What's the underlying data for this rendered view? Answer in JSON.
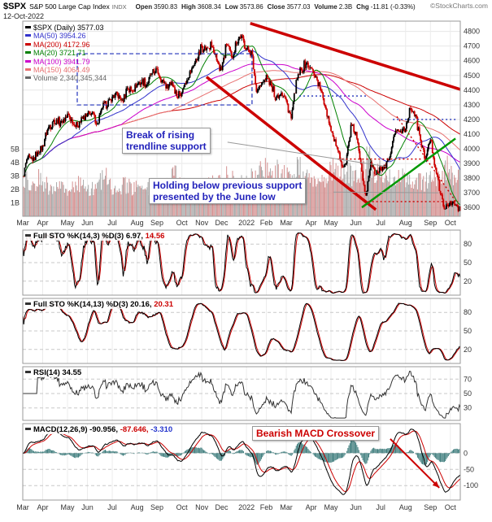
{
  "header": {
    "symbol": "$SPX",
    "name": "S&P 500 Large Cap Index",
    "exchange": "INDX",
    "date": "12-Oct-2022",
    "copyright": "©StockCharts.com",
    "quote": [
      {
        "label": "Open",
        "value": "3590.83"
      },
      {
        "label": "High",
        "value": "3608.34"
      },
      {
        "label": "Low",
        "value": "3573.86"
      },
      {
        "label": "Close",
        "value": "3577.03"
      },
      {
        "label": "Volume",
        "value": "2.3B"
      },
      {
        "label": "Chg",
        "value": "-11.81 (-0.33%)"
      }
    ]
  },
  "legend": [
    {
      "label": "$SPX (Daily)",
      "value": "3577.03",
      "color": "#000000"
    },
    {
      "label": "MA(50)",
      "value": "3954.26",
      "color": "#3333cc"
    },
    {
      "label": "MA(200)",
      "value": "4172.96",
      "color": "#cc0000"
    },
    {
      "label": "MA(20)",
      "value": "3721.71",
      "color": "#008000"
    },
    {
      "label": "MA(100)",
      "value": "3941.79",
      "color": "#cc00cc"
    },
    {
      "label": "MA(150)",
      "value": "4064.49",
      "color": "#e87070"
    },
    {
      "label": "Volume",
      "value": "2,340,345,344",
      "color": "#666666"
    }
  ],
  "annotations": {
    "break_box": {
      "line1": "Break of rising",
      "line2": "trendline support"
    },
    "hold_box": {
      "line1": "Holding below previous support",
      "line2": "presented by the June low"
    },
    "macd_box": {
      "text": "Bearish MACD Crossover"
    }
  },
  "colors": {
    "candle_up": "#000000",
    "candle_down": "#cc0000",
    "macd_hist": "#3d7c7c",
    "annotation_blue": "#2222bb",
    "annotation_red": "#cc0000",
    "grid": "#e7e7e7"
  },
  "chart_data": {
    "type": "candlestick",
    "title": "$SPX S&P 500 Large Cap Index, Daily, with MA(20,50,100,150,200), Volume, Full STO, RSI and MACD panels",
    "x_axis_months": [
      [
        "Mar",
        0
      ],
      [
        "Apr",
        4
      ],
      [
        "May",
        9
      ],
      [
        "Jun",
        13
      ],
      [
        "Jul",
        18
      ],
      [
        "Aug",
        23
      ],
      [
        "Sep",
        27
      ],
      [
        "Oct",
        32
      ],
      [
        "Nov",
        36
      ],
      [
        "Dec",
        40
      ],
      [
        "2022",
        45
      ],
      [
        "Feb",
        49
      ],
      [
        "Mar",
        53
      ],
      [
        "Apr",
        58
      ],
      [
        "May",
        62
      ],
      [
        "Jun",
        67
      ],
      [
        "Jul",
        72
      ],
      [
        "Aug",
        77
      ],
      [
        "Sep",
        82
      ],
      [
        "Oct",
        86
      ]
    ],
    "price_axis": {
      "min": 3540,
      "max": 4870,
      "ticks": [
        3600,
        3700,
        3800,
        3900,
        4000,
        4100,
        4200,
        4300,
        4400,
        4500,
        4600,
        4700,
        4800
      ]
    },
    "volume_axis": {
      "ticks_B": [
        1,
        2,
        3,
        4,
        5
      ]
    },
    "last_close": 3577.03,
    "weekly_close": [
      3811,
      3943,
      3913,
      3975,
      4019,
      4129,
      4185,
      4180,
      4181,
      4233,
      4174,
      4156,
      4204,
      4230,
      4247,
      4166,
      4281,
      4297,
      4352,
      4370,
      4327,
      4412,
      4395,
      4437,
      4468,
      4442,
      4510,
      4535,
      4459,
      4433,
      4455,
      4357,
      4392,
      4471,
      4545,
      4605,
      4698,
      4683,
      4698,
      4595,
      4538,
      4712,
      4621,
      4726,
      4766,
      4677,
      4663,
      4398,
      4432,
      4501,
      4419,
      4349,
      4385,
      4329,
      4204,
      4463,
      4543,
      4577,
      4546,
      4488,
      4392,
      4271,
      4123,
      4024,
      3901,
      3901,
      4158,
      4109,
      3901,
      3675,
      3912,
      3825,
      3863,
      3863,
      3962,
      4130,
      4118,
      4145,
      4280,
      4228,
      4058,
      3924,
      4067,
      3873,
      3693,
      3586,
      3640,
      3612,
      3577
    ],
    "weekly_volume_B": [
      2.8,
      2.6,
      2.5,
      2.9,
      2.3,
      2.2,
      2.1,
      2.2,
      2.0,
      2.1,
      2.3,
      2.5,
      2.2,
      2.0,
      2.1,
      2.6,
      3.6,
      2.2,
      2.1,
      2.0,
      2.3,
      2.2,
      2.1,
      2.0,
      1.9,
      2.0,
      2.1,
      2.2,
      2.0,
      2.3,
      3.4,
      2.4,
      2.4,
      2.2,
      2.1,
      2.3,
      2.2,
      2.3,
      2.4,
      2.8,
      3.0,
      3.4,
      2.7,
      2.2,
      2.4,
      2.6,
      2.8,
      3.3,
      3.6,
      3.2,
      3.0,
      3.3,
      3.1,
      3.4,
      3.3,
      3.5,
      3.0,
      2.8,
      2.7,
      2.6,
      2.8,
      3.2,
      3.4,
      3.3,
      3.6,
      3.2,
      3.0,
      3.1,
      3.4,
      4.6,
      3.3,
      3.4,
      3.0,
      2.8,
      2.7,
      2.9,
      2.8,
      2.9,
      2.7,
      2.6,
      2.5,
      2.7,
      2.8,
      2.9,
      3.1,
      3.6,
      3.0,
      2.8,
      2.3
    ],
    "indicators": {
      "sto_fast": {
        "label": "Full STO %K(14,3) %D(3)",
        "k": "6.97",
        "d": "14.56",
        "grid": [
          80,
          50,
          20
        ]
      },
      "sto_slow": {
        "label": "Full STO %K(14,13) %D(3)",
        "k": "20.16",
        "d": "20.31",
        "grid": [
          80,
          50,
          20
        ]
      },
      "rsi": {
        "label": "RSI(14)",
        "value": "34.55",
        "grid": [
          70,
          50,
          30
        ]
      },
      "macd": {
        "label": "MACD(12,26,9)",
        "macd": "-90.956",
        "signal": "-87.646",
        "hist": "-3.310",
        "grid": [
          0,
          -50,
          -100
        ]
      }
    },
    "overlays": {
      "lines": [
        {
          "x1": 0.52,
          "p1": 4855,
          "x2": 1.0,
          "p2": 4405,
          "color": "#cc0000",
          "w": 3.5
        },
        {
          "x1": 0.42,
          "p1": 4490,
          "x2": 0.807,
          "p2": 3585,
          "color": "#cc0000",
          "w": 3.5
        },
        {
          "x1": 0.775,
          "p1": 3600,
          "x2": 0.989,
          "p2": 4070,
          "color": "#009900",
          "w": 2.5
        },
        {
          "x1": 0.632,
          "p1": 4360,
          "x2": 0.788,
          "p2": 4360,
          "color": "#2233bb",
          "w": 1.4,
          "dash": "2 3"
        },
        {
          "x1": 0.846,
          "p1": 4200,
          "x2": 0.994,
          "p2": 4200,
          "color": "#2233bb",
          "w": 1.4,
          "dash": "2 3"
        },
        {
          "x1": 0.72,
          "p1": 3930,
          "x2": 0.91,
          "p2": 3930,
          "color": "#cc0000",
          "w": 1.4,
          "dash": "2 3"
        },
        {
          "x1": 0.78,
          "p1": 3640,
          "x2": 0.995,
          "p2": 3640,
          "color": "#cc0000",
          "w": 1.4,
          "dash": "2 3"
        },
        {
          "x1": 0.855,
          "p1": 4220,
          "x2": 0.99,
          "p2": 3640,
          "color": "#cc0000",
          "w": 1.4,
          "dash": "2 3"
        },
        {
          "x1": 0.468,
          "p1": 4045,
          "x2": 0.83,
          "p2": 3880,
          "color": "#999999",
          "w": 1
        },
        {
          "x1": 0.71,
          "p1": 3705,
          "x2": 0.95,
          "p2": 3700,
          "color": "#999999",
          "w": 1
        }
      ],
      "rects": [
        {
          "x1": 0.1245,
          "p1": 4648,
          "x2": 0.524,
          "p2": 4299,
          "color": "#2233bb"
        }
      ],
      "macd_arrow": {
        "x1": 0.84,
        "y1": 0.2,
        "x2": 0.952,
        "y2": 0.84
      }
    }
  }
}
